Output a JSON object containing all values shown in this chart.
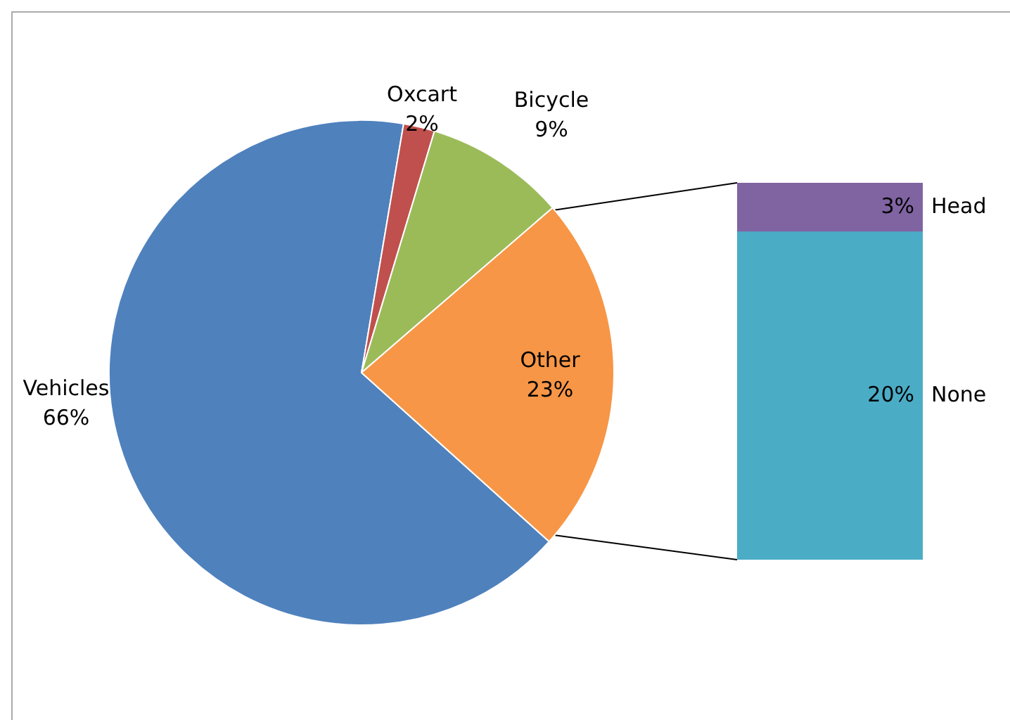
{
  "chart_data": [
    {
      "type": "pie",
      "categories": [
        "Vehicles",
        "Oxcart",
        "Bicycle",
        "Other"
      ],
      "values": [
        66,
        2,
        9,
        23
      ],
      "colors": [
        "#4f81bd",
        "#c0504d",
        "#9bbb59",
        "#f79646"
      ],
      "value_labels": [
        "66%",
        "2%",
        "9%",
        "23%"
      ]
    },
    {
      "type": "bar",
      "stacked": true,
      "categories": [
        null
      ],
      "series": [
        {
          "name": "None",
          "color": "#4bacc6",
          "values": [
            20
          ],
          "value_labels": [
            "20%"
          ]
        },
        {
          "name": "Head",
          "color": "#8064a2",
          "values": [
            3
          ],
          "value_labels": [
            "3%"
          ]
        }
      ]
    }
  ]
}
